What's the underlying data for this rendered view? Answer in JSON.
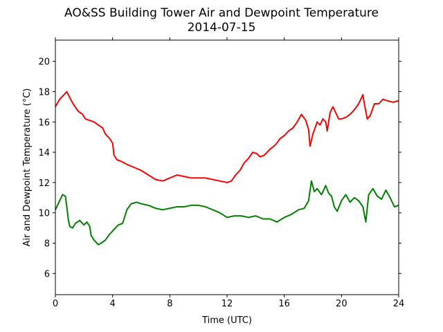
{
  "chart_data": {
    "type": "line",
    "title": "AO&SS Building Tower Air and Dewpoint Temperature",
    "subtitle": "2014-07-15",
    "xlabel": "Time (UTC)",
    "ylabel": "Air and Dewpoint Temperature (°C)",
    "xlim": [
      0,
      24
    ],
    "ylim": [
      4.6,
      21.4
    ],
    "x_ticks": [
      0,
      4,
      8,
      12,
      16,
      20,
      24
    ],
    "y_ticks": [
      6,
      8,
      10,
      12,
      14,
      16,
      18,
      20
    ],
    "grid": false,
    "series": [
      {
        "color": "#ff0000",
        "points": [
          [
            0.0,
            17.0
          ],
          [
            0.3,
            17.5
          ],
          [
            0.6,
            17.8
          ],
          [
            0.8,
            18.0
          ],
          [
            1.0,
            17.6
          ],
          [
            1.3,
            17.1
          ],
          [
            1.6,
            16.7
          ],
          [
            1.9,
            16.5
          ],
          [
            2.1,
            16.2
          ],
          [
            2.4,
            16.1
          ],
          [
            2.7,
            16.0
          ],
          [
            3.0,
            15.8
          ],
          [
            3.3,
            15.6
          ],
          [
            3.5,
            15.2
          ],
          [
            3.8,
            14.9
          ],
          [
            4.0,
            14.6
          ],
          [
            4.1,
            13.8
          ],
          [
            4.3,
            13.5
          ],
          [
            4.6,
            13.4
          ],
          [
            5.0,
            13.2
          ],
          [
            5.5,
            13.0
          ],
          [
            6.0,
            12.8
          ],
          [
            6.5,
            12.5
          ],
          [
            7.0,
            12.2
          ],
          [
            7.5,
            12.1
          ],
          [
            8.0,
            12.3
          ],
          [
            8.5,
            12.5
          ],
          [
            9.0,
            12.4
          ],
          [
            9.5,
            12.3
          ],
          [
            10.0,
            12.3
          ],
          [
            10.5,
            12.3
          ],
          [
            11.0,
            12.2
          ],
          [
            11.5,
            12.1
          ],
          [
            12.0,
            12.0
          ],
          [
            12.3,
            12.1
          ],
          [
            12.6,
            12.5
          ],
          [
            12.9,
            12.8
          ],
          [
            13.2,
            13.3
          ],
          [
            13.5,
            13.6
          ],
          [
            13.8,
            14.0
          ],
          [
            14.1,
            13.9
          ],
          [
            14.3,
            13.7
          ],
          [
            14.6,
            13.8
          ],
          [
            15.0,
            14.2
          ],
          [
            15.4,
            14.5
          ],
          [
            15.7,
            14.9
          ],
          [
            16.0,
            15.1
          ],
          [
            16.3,
            15.4
          ],
          [
            16.6,
            15.6
          ],
          [
            16.9,
            16.0
          ],
          [
            17.2,
            16.5
          ],
          [
            17.5,
            16.1
          ],
          [
            17.7,
            15.5
          ],
          [
            17.8,
            14.4
          ],
          [
            18.0,
            15.2
          ],
          [
            18.3,
            16.0
          ],
          [
            18.5,
            15.8
          ],
          [
            18.7,
            16.2
          ],
          [
            18.9,
            16.0
          ],
          [
            19.0,
            15.4
          ],
          [
            19.2,
            16.6
          ],
          [
            19.4,
            17.0
          ],
          [
            19.6,
            16.6
          ],
          [
            19.8,
            16.2
          ],
          [
            20.0,
            16.2
          ],
          [
            20.3,
            16.3
          ],
          [
            20.6,
            16.5
          ],
          [
            20.9,
            16.8
          ],
          [
            21.2,
            17.2
          ],
          [
            21.5,
            17.8
          ],
          [
            21.6,
            17.2
          ],
          [
            21.8,
            16.2
          ],
          [
            22.0,
            16.4
          ],
          [
            22.3,
            17.2
          ],
          [
            22.6,
            17.2
          ],
          [
            22.9,
            17.5
          ],
          [
            23.2,
            17.4
          ],
          [
            23.6,
            17.3
          ],
          [
            24.0,
            17.4
          ]
        ]
      },
      {
        "color": "#008000",
        "points": [
          [
            0.0,
            10.2
          ],
          [
            0.2,
            10.6
          ],
          [
            0.4,
            11.0
          ],
          [
            0.5,
            11.2
          ],
          [
            0.7,
            11.1
          ],
          [
            0.8,
            10.4
          ],
          [
            0.9,
            9.6
          ],
          [
            1.0,
            9.1
          ],
          [
            1.2,
            9.0
          ],
          [
            1.4,
            9.3
          ],
          [
            1.7,
            9.5
          ],
          [
            2.0,
            9.2
          ],
          [
            2.2,
            9.4
          ],
          [
            2.4,
            9.1
          ],
          [
            2.5,
            8.5
          ],
          [
            2.7,
            8.2
          ],
          [
            3.0,
            7.9
          ],
          [
            3.2,
            8.0
          ],
          [
            3.5,
            8.2
          ],
          [
            3.8,
            8.6
          ],
          [
            4.1,
            8.9
          ],
          [
            4.4,
            9.2
          ],
          [
            4.7,
            9.3
          ],
          [
            5.0,
            10.2
          ],
          [
            5.3,
            10.6
          ],
          [
            5.7,
            10.7
          ],
          [
            6.0,
            10.6
          ],
          [
            6.5,
            10.5
          ],
          [
            7.0,
            10.3
          ],
          [
            7.5,
            10.2
          ],
          [
            8.0,
            10.3
          ],
          [
            8.5,
            10.4
          ],
          [
            9.0,
            10.4
          ],
          [
            9.5,
            10.5
          ],
          [
            10.0,
            10.5
          ],
          [
            10.5,
            10.4
          ],
          [
            11.0,
            10.2
          ],
          [
            11.5,
            10.0
          ],
          [
            12.0,
            9.7
          ],
          [
            12.5,
            9.8
          ],
          [
            13.0,
            9.8
          ],
          [
            13.5,
            9.7
          ],
          [
            14.0,
            9.8
          ],
          [
            14.5,
            9.6
          ],
          [
            15.0,
            9.6
          ],
          [
            15.5,
            9.4
          ],
          [
            16.0,
            9.7
          ],
          [
            16.5,
            9.9
          ],
          [
            17.0,
            10.2
          ],
          [
            17.4,
            10.3
          ],
          [
            17.7,
            10.8
          ],
          [
            17.9,
            12.1
          ],
          [
            18.1,
            11.4
          ],
          [
            18.3,
            11.6
          ],
          [
            18.6,
            11.2
          ],
          [
            18.9,
            11.8
          ],
          [
            19.1,
            11.3
          ],
          [
            19.3,
            11.1
          ],
          [
            19.5,
            10.4
          ],
          [
            19.7,
            10.1
          ],
          [
            20.0,
            10.8
          ],
          [
            20.3,
            11.2
          ],
          [
            20.6,
            10.7
          ],
          [
            20.9,
            11.0
          ],
          [
            21.2,
            10.8
          ],
          [
            21.5,
            10.4
          ],
          [
            21.7,
            9.4
          ],
          [
            21.9,
            11.2
          ],
          [
            22.2,
            11.6
          ],
          [
            22.5,
            11.1
          ],
          [
            22.8,
            10.9
          ],
          [
            23.1,
            11.5
          ],
          [
            23.4,
            11.0
          ],
          [
            23.7,
            10.4
          ],
          [
            24.0,
            10.5
          ]
        ]
      }
    ]
  }
}
